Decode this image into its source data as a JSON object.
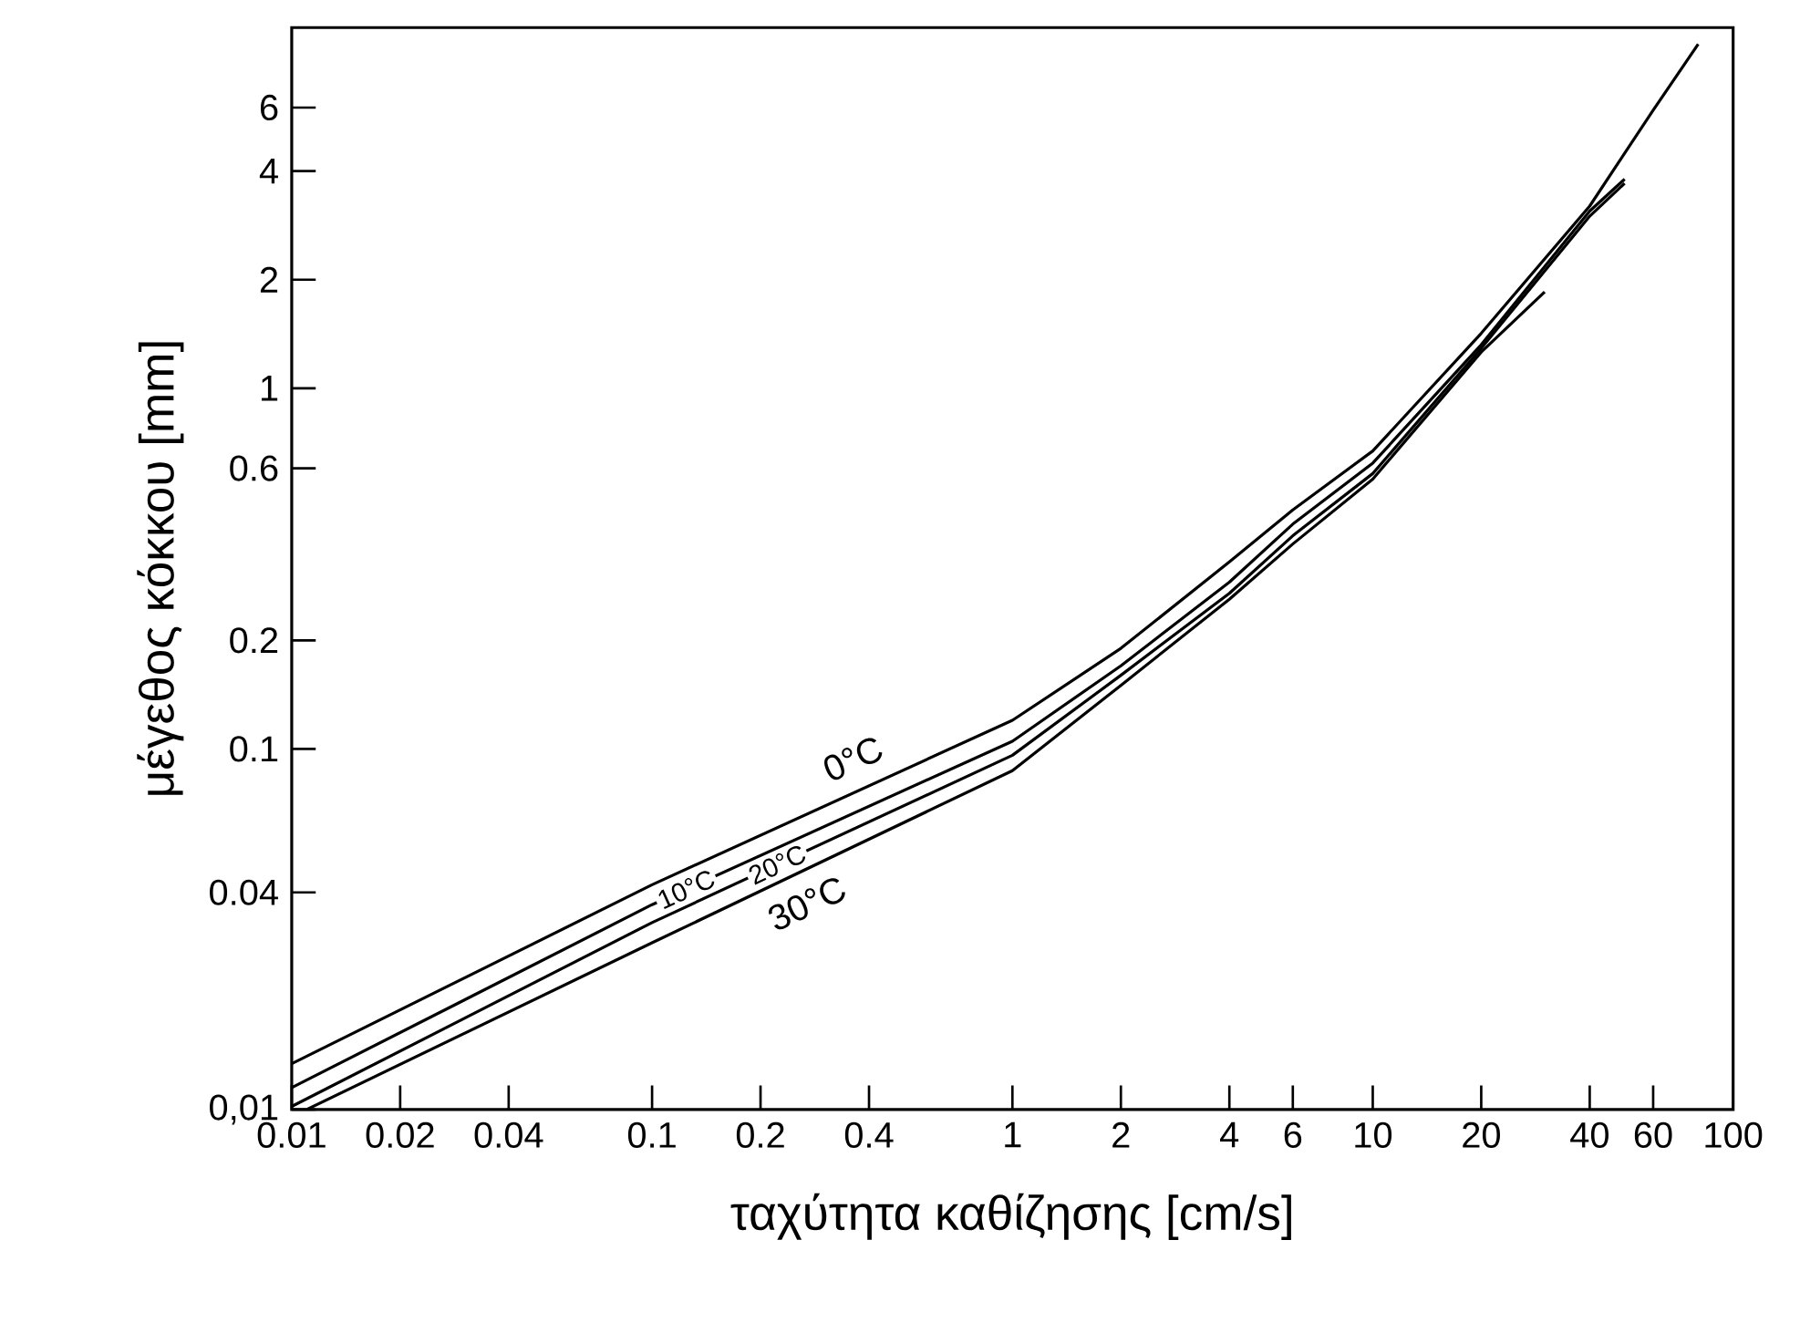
{
  "chart_data": {
    "type": "line",
    "xlabel": "ταχύτητα καθίζησης [cm/s]",
    "ylabel": "μέγεθος κόκκου [mm]",
    "log": "xy",
    "xlim": [
      0.01,
      100
    ],
    "ylim": [
      0.01,
      10
    ],
    "xticks": [
      0.01,
      0.02,
      0.04,
      0.1,
      0.2,
      0.4,
      1,
      2,
      4,
      6,
      10,
      20,
      40,
      60,
      100
    ],
    "yticks": [
      {
        "value": 0.01,
        "label": "0,01"
      },
      0.04,
      0.1,
      0.2,
      0.6,
      1,
      2,
      4,
      6
    ],
    "grid": false,
    "legend": false,
    "series": [
      {
        "name": "0°C",
        "color": "#000000",
        "x": [
          0.01,
          0.1,
          1,
          2,
          4,
          6,
          10,
          20,
          40,
          60,
          80
        ],
        "values": [
          0.0134,
          0.042,
          0.12,
          0.19,
          0.33,
          0.46,
          0.67,
          1.42,
          3.2,
          5.9,
          9.0
        ]
      },
      {
        "name": "10°C",
        "color": "#000000",
        "x": [
          0.01,
          0.1,
          1,
          2,
          4,
          6,
          10,
          20,
          40,
          50
        ],
        "values": [
          0.0115,
          0.037,
          0.105,
          0.17,
          0.29,
          0.42,
          0.62,
          1.32,
          3.1,
          3.8
        ]
      },
      {
        "name": "20°C",
        "color": "#000000",
        "x": [
          0.01,
          0.1,
          1,
          2,
          4,
          6,
          10,
          20,
          40,
          50
        ],
        "values": [
          0.0102,
          0.033,
          0.096,
          0.16,
          0.27,
          0.39,
          0.58,
          1.29,
          3.0,
          3.7
        ]
      },
      {
        "name": "30°C",
        "color": "#000000",
        "x": [
          0.011,
          0.1,
          1,
          2,
          4,
          6,
          10,
          20,
          30
        ],
        "values": [
          0.01,
          0.029,
          0.087,
          0.15,
          0.26,
          0.37,
          0.56,
          1.26,
          1.85
        ]
      }
    ]
  }
}
